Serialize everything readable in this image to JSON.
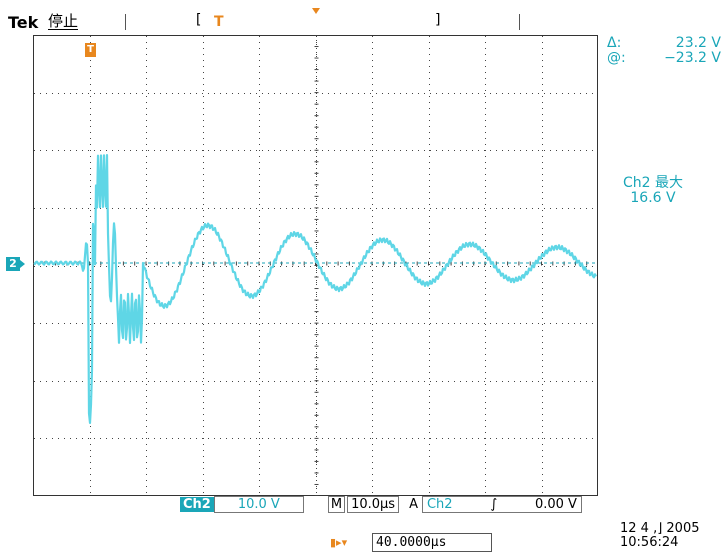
{
  "header": {
    "brand": "Tek",
    "run_status": "停止",
    "trigger_position_marker": "T"
  },
  "cursor": {
    "t_marker": "T",
    "delta_label": "Δ:",
    "delta_value": "23.2 V",
    "at_label": "@:",
    "at_value": "−23.2 V"
  },
  "measurement": {
    "label": "Ch2 最大",
    "value": "16.6 V"
  },
  "channel": {
    "marker": "2",
    "color": "#1aa6b8"
  },
  "status_bar": {
    "ch_tag": "Ch2",
    "ch_scale": "10.0 V",
    "m_label": "M",
    "timebase": "10.0µs",
    "a_label": "A",
    "trig_source": "Ch2",
    "trig_slope": "∫",
    "trig_level": "0.00 V"
  },
  "trigger_position": {
    "icon": "▮▸▾",
    "value": "40.0000µs"
  },
  "datetime": {
    "date": "12 4 ,⌋ 2005",
    "time": "10:56:24"
  },
  "accent_color": "#e8871e",
  "trace_color": "#5fd6e6"
}
